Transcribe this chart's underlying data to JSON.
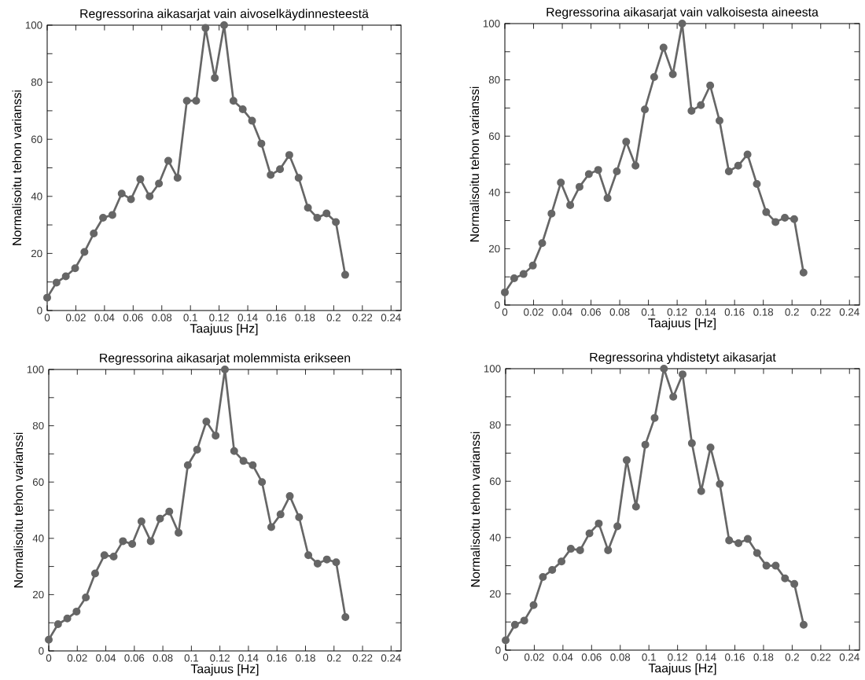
{
  "chart_data": [
    {
      "type": "line",
      "title": "Regressorina aikasarjat vain aivoselkäydinnesteestä",
      "xlabel": "Taajuus [Hz]",
      "ylabel": "Normalisoitu tehon varianssi",
      "color": "#666666",
      "marker": "circle",
      "line_style": "solid",
      "xlim": [
        0,
        0.247
      ],
      "ylim": [
        0,
        100
      ],
      "xticks": [
        0,
        0.02,
        0.04,
        0.06,
        0.08,
        0.1,
        0.12,
        0.14,
        0.16,
        0.18,
        0.2,
        0.22,
        0.24
      ],
      "yticks": [
        0,
        {
          "value": 10,
          "label": null
        },
        20,
        {
          "value": 30,
          "label": null
        },
        40,
        {
          "value": 50,
          "label": null
        },
        60,
        {
          "value": 70,
          "label": null
        },
        80,
        {
          "value": 90,
          "label": null
        },
        100
      ],
      "x": [
        0,
        0.0065,
        0.013,
        0.0195,
        0.026,
        0.0325,
        0.039,
        0.0455,
        0.052,
        0.0585,
        0.065,
        0.0715,
        0.078,
        0.0845,
        0.091,
        0.0975,
        0.104,
        0.1105,
        0.117,
        0.1235,
        0.13,
        0.1365,
        0.143,
        0.1495,
        0.156,
        0.1625,
        0.169,
        0.1755,
        0.182,
        0.1885,
        0.195,
        0.2015,
        0.208
      ],
      "values": [
        4.5,
        9.8,
        12,
        14.8,
        20.5,
        27,
        32.5,
        33.5,
        41,
        39,
        46,
        40,
        44.5,
        52.5,
        46.5,
        73.5,
        73.5,
        99,
        81.5,
        100,
        73.5,
        70.5,
        66.5,
        58.5,
        47.5,
        49.5,
        54.5,
        46.5,
        36,
        32.5,
        34,
        31,
        12.5
      ]
    },
    {
      "type": "line",
      "title": "Regressorina aikasarjat vain valkoisesta aineesta",
      "xlabel": "Taajuus [Hz]",
      "ylabel": "Normalisoitu tehon varianssi",
      "color": "#666666",
      "marker": "circle",
      "line_style": "solid",
      "xlim": [
        0,
        0.247
      ],
      "ylim": [
        0,
        100
      ],
      "xticks": [
        0,
        0.02,
        0.04,
        0.06,
        0.08,
        0.1,
        0.12,
        0.14,
        0.16,
        0.18,
        0.2,
        0.22,
        0.24
      ],
      "yticks": [
        0,
        {
          "value": 10,
          "label": null
        },
        20,
        {
          "value": 30,
          "label": null
        },
        40,
        {
          "value": 50,
          "label": null
        },
        60,
        {
          "value": 70,
          "label": null
        },
        80,
        {
          "value": 90,
          "label": null
        },
        100
      ],
      "x": [
        0,
        0.0065,
        0.013,
        0.0195,
        0.026,
        0.0325,
        0.039,
        0.0455,
        0.052,
        0.0585,
        0.065,
        0.0715,
        0.078,
        0.0845,
        0.091,
        0.0975,
        0.104,
        0.1105,
        0.117,
        0.1235,
        0.13,
        0.1365,
        0.143,
        0.1495,
        0.156,
        0.1625,
        0.169,
        0.1755,
        0.182,
        0.1885,
        0.195,
        0.2015,
        0.208
      ],
      "values": [
        4.5,
        9.5,
        11,
        14,
        22,
        32.5,
        43.5,
        35.5,
        42,
        46.5,
        48,
        38,
        47.5,
        58,
        49.5,
        69.5,
        81,
        91.5,
        82,
        100,
        69,
        71,
        78,
        65.5,
        47.5,
        49.5,
        53.5,
        43,
        33,
        29.5,
        31,
        30.5,
        11.5
      ]
    },
    {
      "type": "line",
      "title": "Regressorina aikasarjat molemmista erikseen",
      "xlabel": "Taajuus [Hz]",
      "ylabel": "Normalisoitu tehon varianssi",
      "color": "#666666",
      "marker": "circle",
      "line_style": "solid",
      "xlim": [
        0,
        0.247
      ],
      "ylim": [
        0,
        100
      ],
      "xticks": [
        0,
        0.02,
        0.04,
        0.06,
        0.08,
        0.1,
        0.12,
        0.14,
        0.16,
        0.18,
        0.2,
        0.22,
        0.24
      ],
      "yticks": [
        0,
        {
          "value": 10,
          "label": null
        },
        20,
        {
          "value": 30,
          "label": null
        },
        40,
        {
          "value": 50,
          "label": null
        },
        60,
        {
          "value": 70,
          "label": null
        },
        80,
        {
          "value": 90,
          "label": null
        },
        100
      ],
      "x": [
        0,
        0.0065,
        0.013,
        0.0195,
        0.026,
        0.0325,
        0.039,
        0.0455,
        0.052,
        0.0585,
        0.065,
        0.0715,
        0.078,
        0.0845,
        0.091,
        0.0975,
        0.104,
        0.1105,
        0.117,
        0.1235,
        0.13,
        0.1365,
        0.143,
        0.1495,
        0.156,
        0.1625,
        0.169,
        0.1755,
        0.182,
        0.1885,
        0.195,
        0.2015,
        0.208
      ],
      "values": [
        4,
        9.5,
        11.5,
        14,
        19,
        27.5,
        34,
        33.5,
        39,
        38,
        46,
        39,
        47,
        49.5,
        42,
        66,
        71.5,
        81.5,
        76.5,
        100,
        71,
        67.5,
        66,
        60,
        44,
        48.5,
        55,
        47.5,
        34,
        31,
        32.5,
        31.5,
        12
      ]
    },
    {
      "type": "line",
      "title": "Regressorina yhdistetyt aikasarjat",
      "xlabel": "Taajuus [Hz]",
      "ylabel": "Normalisoitu tehon varianssi",
      "color": "#666666",
      "marker": "circle",
      "line_style": "solid",
      "xlim": [
        0,
        0.247
      ],
      "ylim": [
        0,
        100
      ],
      "xticks": [
        0,
        0.02,
        0.04,
        0.06,
        0.08,
        0.1,
        0.12,
        0.14,
        0.16,
        0.18,
        0.2,
        0.22,
        0.24
      ],
      "yticks": [
        0,
        {
          "value": 10,
          "label": null
        },
        20,
        {
          "value": 30,
          "label": null
        },
        40,
        {
          "value": 50,
          "label": null
        },
        60,
        {
          "value": 70,
          "label": null
        },
        80,
        {
          "value": 90,
          "label": null
        },
        100
      ],
      "x": [
        0,
        0.0065,
        0.013,
        0.0195,
        0.026,
        0.0325,
        0.039,
        0.0455,
        0.052,
        0.0585,
        0.065,
        0.0715,
        0.078,
        0.0845,
        0.091,
        0.0975,
        0.104,
        0.1105,
        0.117,
        0.1235,
        0.13,
        0.1365,
        0.143,
        0.1495,
        0.156,
        0.1625,
        0.169,
        0.1755,
        0.182,
        0.1885,
        0.195,
        0.2015,
        0.208
      ],
      "values": [
        3.5,
        9,
        10.5,
        16,
        26,
        28.5,
        31.5,
        36,
        35.5,
        41.5,
        45,
        35.5,
        44,
        67.5,
        51,
        73,
        82.5,
        100,
        90,
        98,
        73.5,
        56.5,
        72,
        59,
        39,
        38,
        39.5,
        34.5,
        30,
        30,
        25.5,
        23.5,
        9
      ]
    }
  ]
}
